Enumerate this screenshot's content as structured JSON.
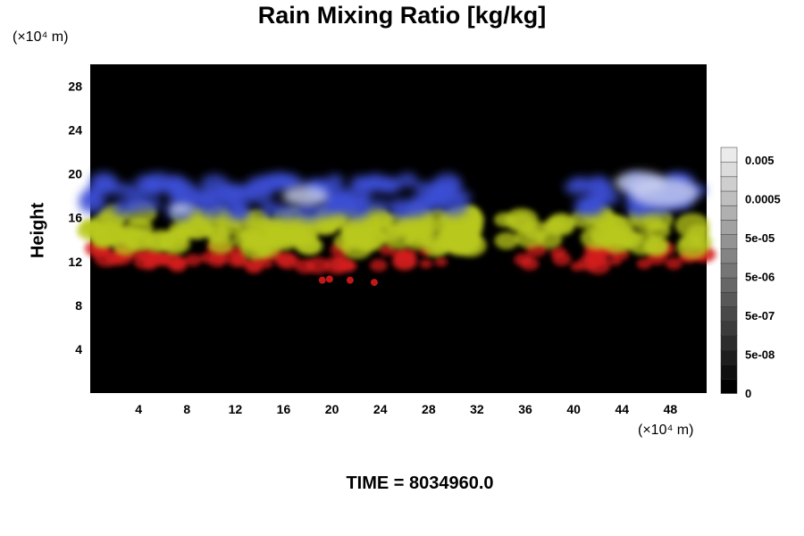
{
  "chart_data": {
    "type": "heatmap",
    "title": "Rain Mixing Ratio [kg/kg]",
    "ylabel": "Height",
    "xunit": "(×10⁴ m)",
    "yunit": "(×10⁴ m)",
    "footer": "TIME = 8034960.0",
    "x_ticks": [
      "4",
      "8",
      "12",
      "16",
      "20",
      "24",
      "28",
      "32",
      "36",
      "40",
      "44",
      "48"
    ],
    "y_ticks": [
      "4",
      "8",
      "12",
      "16",
      "20",
      "24",
      "28"
    ],
    "xlim": [
      0,
      51
    ],
    "ylim": [
      0,
      30
    ],
    "colorbar": {
      "labels": [
        "0.005",
        "0.0005",
        "5e-05",
        "5e-06",
        "5e-07",
        "5e-08",
        "0"
      ],
      "levels": 17
    },
    "layers": [
      {
        "name": "blue",
        "color": "#3c4fd6",
        "y_range": [
          16.5,
          19.5
        ]
      },
      {
        "name": "yellow-green",
        "color": "#b8c81e",
        "y_range": [
          13.2,
          16.5
        ]
      },
      {
        "name": "red",
        "color": "#d41e1e",
        "y_range": [
          11.5,
          13.3
        ]
      }
    ]
  }
}
